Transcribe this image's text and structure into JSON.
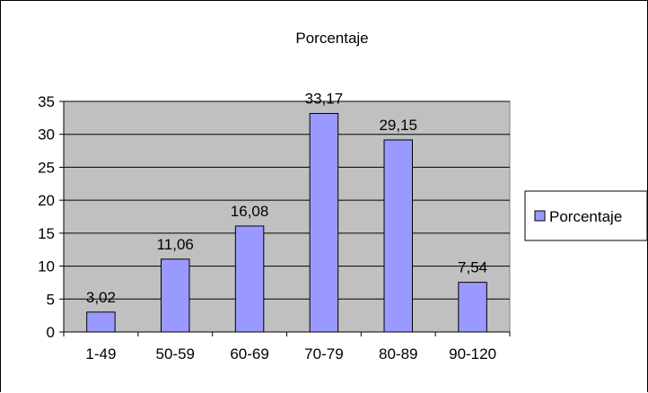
{
  "chart_data": {
    "type": "bar",
    "title": "Porcentaje",
    "categories": [
      "1-49",
      "50-59",
      "60-69",
      "70-79",
      "80-89",
      "90-120"
    ],
    "series": [
      {
        "name": "Porcentaje",
        "values": [
          3.02,
          11.06,
          16.08,
          33.17,
          29.15,
          7.54
        ]
      }
    ],
    "data_labels": [
      "3,02",
      "11,06",
      "16,08",
      "33,17",
      "29,15",
      "7,54"
    ],
    "ylim": [
      0,
      35
    ],
    "yticks": [
      "0",
      "5",
      "10",
      "15",
      "20",
      "25",
      "30",
      "35"
    ],
    "grid": true,
    "legend_position": "right",
    "colors": {
      "bar_fill": "#9999ff",
      "plot_background": "#c0c0c0",
      "axis": "#000000"
    }
  }
}
